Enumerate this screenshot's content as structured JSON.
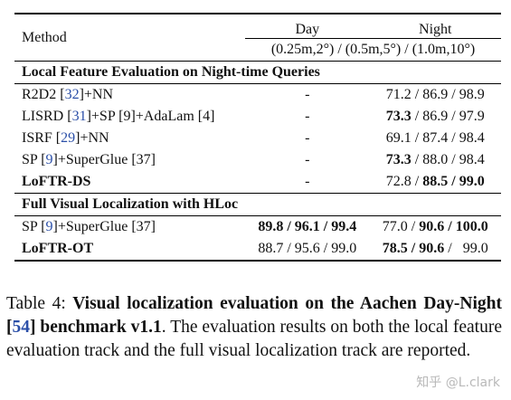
{
  "table": {
    "header": {
      "method": "Method",
      "day": "Day",
      "night": "Night",
      "thresholds": "(0.25m,2°) / (0.5m,5°) / (1.0m,10°)"
    },
    "sections": [
      {
        "title": "Local Feature Evaluation on Night-time Queries",
        "rows": [
          {
            "name": "R2D2 ",
            "cite": "32",
            "suffix": "+NN",
            "day": "-",
            "night": "71.2 / 86.9 / 98.9"
          },
          {
            "name": "LISRD ",
            "cite": "31",
            "suffix": "+SP [9]+AdaLam [4]",
            "day": "-",
            "night_b1": "73.3",
            "night_rest": " / 86.9 / 97.9"
          },
          {
            "name": "ISRF ",
            "cite": "29",
            "suffix": "+NN",
            "day": "-",
            "night": "69.1 / 87.4 / 98.4"
          },
          {
            "name": "SP ",
            "cite": "9",
            "suffix": "+SuperGlue [37]",
            "day": "-",
            "night_b1": "73.3",
            "night_rest": " / 88.0 / 98.4"
          },
          {
            "name": "LoFTR-DS",
            "day": "-",
            "night_a": "72.8 / ",
            "night_b": "88.5 / 99.0"
          }
        ]
      },
      {
        "title": "Full Visual Localization with HLoc",
        "rows": [
          {
            "name": "SP ",
            "cite": "9",
            "suffix": "+SuperGlue [37]",
            "day": "89.8 / 96.1 / 99.4",
            "night_a": "77.0 / ",
            "night_b": "90.6 / 100.0"
          },
          {
            "name": "LoFTR-OT",
            "day": "88.7 / 95.6 / 99.0",
            "night_b": "78.5 / 90.6",
            "night_a": " /   99.0"
          }
        ]
      }
    ]
  },
  "caption": {
    "label": "Table 4:  ",
    "title_a": "Visual localization evaluation on the Aachen Day-Night [",
    "title_cite": "54",
    "title_b": "] benchmark v1.1",
    "body": ".  The evaluation results on both the local feature evaluation track and the full visual localization track are reported."
  },
  "watermark": "知乎 @L.clark"
}
